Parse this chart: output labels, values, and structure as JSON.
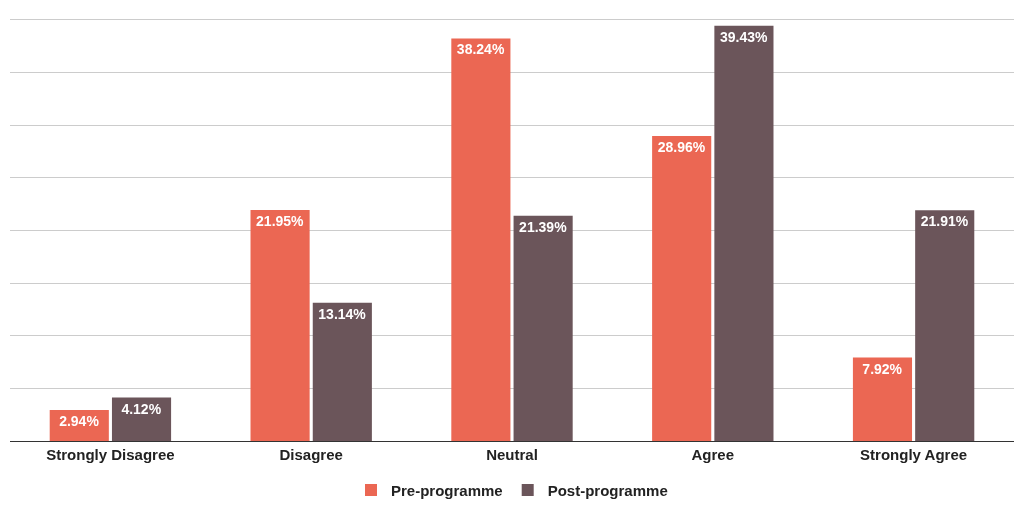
{
  "chart_data": {
    "type": "bar",
    "categories": [
      "Strongly Disagree",
      "Disagree",
      "Neutral",
      "Agree",
      "Strongly Agree"
    ],
    "series": [
      {
        "name": "Pre-programme",
        "color": "#eb6753",
        "values": [
          2.94,
          21.95,
          38.24,
          28.96,
          7.92
        ],
        "value_labels": [
          "2.94%",
          "21.95%",
          "38.24%",
          "28.96%",
          "7.92%"
        ]
      },
      {
        "name": "Post-programme",
        "color": "#6b555a",
        "values": [
          4.12,
          13.14,
          21.39,
          39.43,
          21.91
        ],
        "value_labels": [
          "4.12%",
          "13.14%",
          "21.39%",
          "39.43%",
          "21.91%"
        ]
      }
    ],
    "grid": "y",
    "legend": "bottom",
    "tick_labels": "x"
  }
}
